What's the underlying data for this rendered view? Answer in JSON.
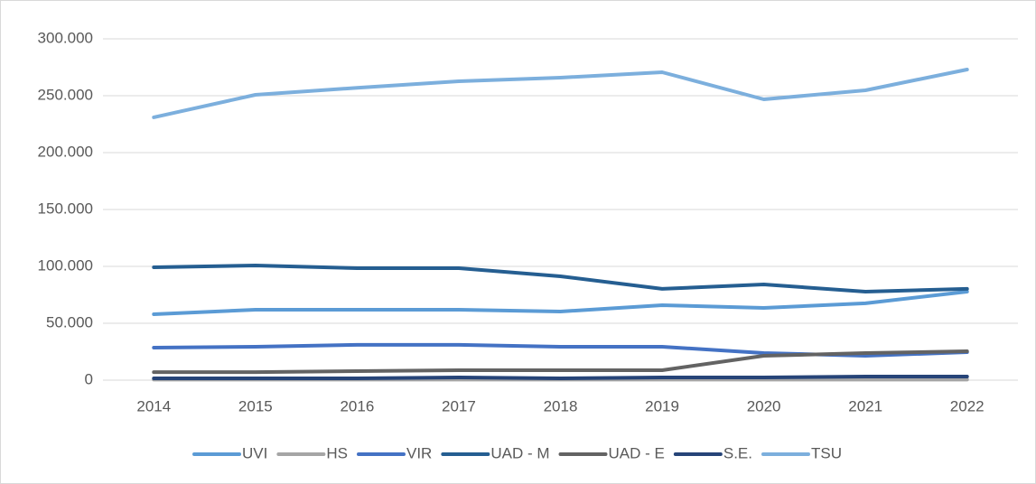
{
  "chart_data": {
    "type": "line",
    "categories": [
      "2014",
      "2015",
      "2016",
      "2017",
      "2018",
      "2019",
      "2020",
      "2021",
      "2022"
    ],
    "series": [
      {
        "name": "UVI",
        "color": "#5b9bd5",
        "values": [
          57900,
          61900,
          61900,
          61900,
          60300,
          65900,
          63500,
          67500,
          77800
        ]
      },
      {
        "name": "HS",
        "color": "#a5a5a5",
        "values": [
          500,
          500,
          500,
          500,
          500,
          500,
          500,
          500,
          500
        ]
      },
      {
        "name": "VIR",
        "color": "#4472c4",
        "values": [
          28600,
          29400,
          31000,
          31000,
          29400,
          29400,
          23800,
          21400,
          24600
        ]
      },
      {
        "name": "UAD - M",
        "color": "#255e91",
        "values": [
          99200,
          100800,
          98400,
          98400,
          91300,
          80200,
          84100,
          77800,
          80200
        ]
      },
      {
        "name": "UAD - E",
        "color": "#636363",
        "values": [
          7100,
          7100,
          7900,
          8700,
          8700,
          8700,
          21400,
          23800,
          25400
        ]
      },
      {
        "name": "S.E.",
        "color": "#264478",
        "values": [
          1600,
          1600,
          1600,
          2400,
          1600,
          2400,
          2400,
          3200,
          3200
        ]
      },
      {
        "name": "TSU",
        "color": "#7cafdd",
        "values": [
          231000,
          250800,
          257000,
          262700,
          265900,
          270600,
          246800,
          254800,
          273000
        ]
      }
    ],
    "ylim": [
      0,
      300000
    ],
    "yticks": [
      0,
      {
        "value": 50000,
        "label": "50.000"
      },
      {
        "value": 100000,
        "label": "100.000"
      },
      {
        "value": 150000,
        "label": "150.000"
      },
      {
        "value": 200000,
        "label": "200.000"
      },
      {
        "value": 250000,
        "label": "250.000"
      },
      {
        "value": 300000,
        "label": "300.000"
      }
    ],
    "grid": true,
    "legend": "bottom"
  }
}
